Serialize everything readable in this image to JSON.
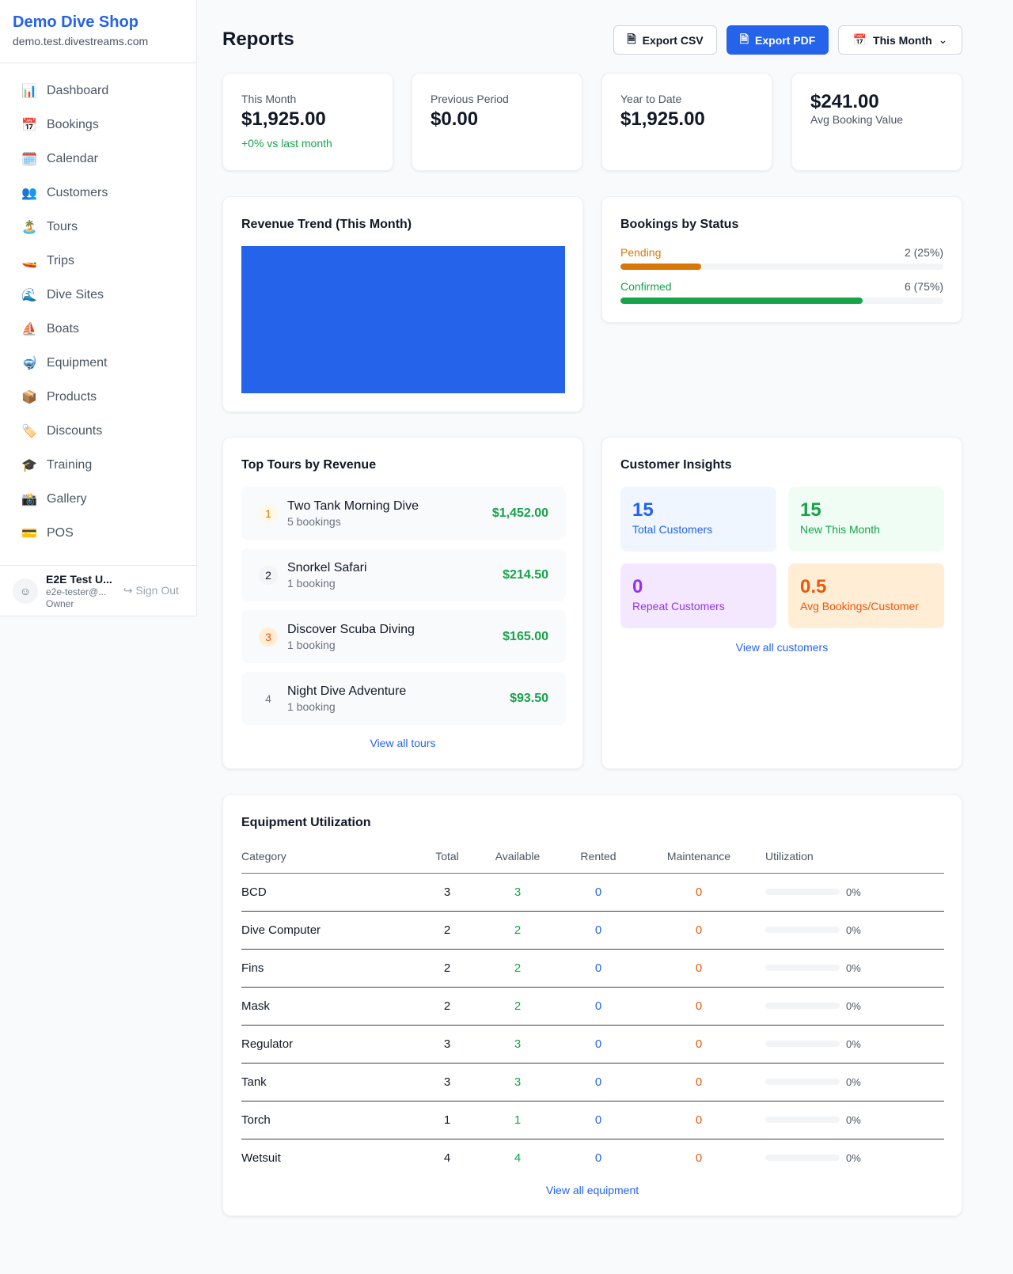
{
  "sidebar": {
    "shop_name": "Demo Dive Shop",
    "domain": "demo.test.divestreams.com",
    "items": [
      {
        "icon": "📊",
        "label": "Dashboard"
      },
      {
        "icon": "📅",
        "label": "Bookings"
      },
      {
        "icon": "🗓️",
        "label": "Calendar"
      },
      {
        "icon": "👥",
        "label": "Customers"
      },
      {
        "icon": "🏝️",
        "label": "Tours"
      },
      {
        "icon": "🚤",
        "label": "Trips"
      },
      {
        "icon": "🌊",
        "label": "Dive Sites"
      },
      {
        "icon": "⛵",
        "label": "Boats"
      },
      {
        "icon": "🤿",
        "label": "Equipment"
      },
      {
        "icon": "📦",
        "label": "Products"
      },
      {
        "icon": "🏷️",
        "label": "Discounts"
      },
      {
        "icon": "🎓",
        "label": "Training"
      },
      {
        "icon": "📸",
        "label": "Gallery"
      },
      {
        "icon": "💳",
        "label": "POS"
      }
    ],
    "user": {
      "name": "E2E Test U...",
      "email": "e2e-tester@...",
      "role": "Owner",
      "sign_out": "Sign Out"
    }
  },
  "header": {
    "title": "Reports",
    "export_csv": "Export CSV",
    "export_pdf": "Export PDF",
    "period": "This Month"
  },
  "stats": [
    {
      "label": "This Month",
      "value": "$1,925.00",
      "sub": "+0% vs last month"
    },
    {
      "label": "Previous Period",
      "value": "$0.00"
    },
    {
      "label": "Year to Date",
      "value": "$1,925.00"
    },
    {
      "value": "$241.00",
      "label": "Avg Booking Value"
    }
  ],
  "revenue_trend": {
    "title": "Revenue Trend (This Month)",
    "color": "#2563eb"
  },
  "bookings_status": {
    "title": "Bookings by Status",
    "items": [
      {
        "label": "Pending",
        "value": "2 (25%)",
        "percent": 25,
        "color": "#d97706"
      },
      {
        "label": "Confirmed",
        "value": "6 (75%)",
        "percent": 75,
        "color": "#16a34a"
      }
    ]
  },
  "top_tours": {
    "title": "Top Tours by Revenue",
    "items": [
      {
        "rank": "1",
        "name": "Two Tank Morning Dive",
        "bookings": "5 bookings",
        "revenue": "$1,452.00"
      },
      {
        "rank": "2",
        "name": "Snorkel Safari",
        "bookings": "1 booking",
        "revenue": "$214.50"
      },
      {
        "rank": "3",
        "name": "Discover Scuba Diving",
        "bookings": "1 booking",
        "revenue": "$165.00"
      },
      {
        "rank": "4",
        "name": "Night Dive Adventure",
        "bookings": "1 booking",
        "revenue": "$93.50"
      }
    ],
    "link": "View all tours"
  },
  "customer_insights": {
    "title": "Customer Insights",
    "items": [
      {
        "value": "15",
        "label": "Total Customers"
      },
      {
        "value": "15",
        "label": "New This Month"
      },
      {
        "value": "0",
        "label": "Repeat Customers"
      },
      {
        "value": "0.5",
        "label": "Avg Bookings/Customer"
      }
    ],
    "link": "View all customers"
  },
  "equipment": {
    "title": "Equipment Utilization",
    "columns": [
      "Category",
      "Total",
      "Available",
      "Rented",
      "Maintenance",
      "Utilization"
    ],
    "rows": [
      [
        "BCD",
        "3",
        "3",
        "0",
        "0",
        "0%"
      ],
      [
        "Dive Computer",
        "2",
        "2",
        "0",
        "0",
        "0%"
      ],
      [
        "Fins",
        "2",
        "2",
        "0",
        "0",
        "0%"
      ],
      [
        "Mask",
        "2",
        "2",
        "0",
        "0",
        "0%"
      ],
      [
        "Regulator",
        "3",
        "3",
        "0",
        "0",
        "0%"
      ],
      [
        "Tank",
        "3",
        "3",
        "0",
        "0",
        "0%"
      ],
      [
        "Torch",
        "1",
        "1",
        "0",
        "0",
        "0%"
      ],
      [
        "Wetsuit",
        "4",
        "4",
        "0",
        "0",
        "0%"
      ]
    ],
    "link": "View all equipment"
  }
}
